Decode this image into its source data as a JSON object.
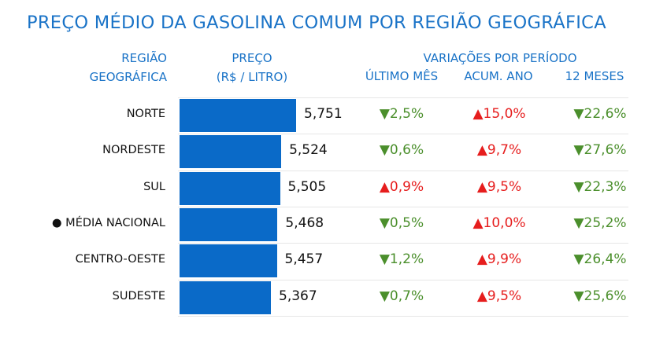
{
  "title": "PREÇO MÉDIO DA GASOLINA COMUM POR REGIÃO GEOGRÁFICA",
  "headers": {
    "region_line1": "REGIÃO",
    "region_line2": "GEOGRÁFICA",
    "price_line1": "PREÇO",
    "price_line2": "(R$ / LITRO)",
    "variations": "VARIAÇÕES POR PERÍODO",
    "col_month": "ÚLTIMO MÊS",
    "col_year": "ACUM. ANO",
    "col_12m": "12 MESES"
  },
  "colors": {
    "bar": "#0a6ac8",
    "up": "#e61d1d",
    "down": "#4b8f2c",
    "header": "#1a73c7"
  },
  "chart_data": {
    "type": "bar",
    "title": "PREÇO MÉDIO DA GASOLINA COMUM POR REGIÃO GEOGRÁFICA",
    "orientation": "horizontal",
    "categories": [
      "NORTE",
      "NORDESTE",
      "SUL",
      "● MÉDIA NACIONAL",
      "CENTRO-OESTE",
      "SUDESTE"
    ],
    "values": [
      5.751,
      5.524,
      5.505,
      5.468,
      5.457,
      5.367
    ],
    "value_labels": [
      "5,751",
      "5,524",
      "5,505",
      "5,468",
      "5,457",
      "5,367"
    ],
    "rows": [
      {
        "region": "NORTE",
        "price": "5,751",
        "month": "▼2,5%",
        "month_dir": "down",
        "year": "▲15,0%",
        "year_dir": "up",
        "m12": "▼22,6%",
        "m12_dir": "down"
      },
      {
        "region": "NORDESTE",
        "price": "5,524",
        "month": "▼0,6%",
        "month_dir": "down",
        "year": "▲9,7%",
        "year_dir": "up",
        "m12": "▼27,6%",
        "m12_dir": "down"
      },
      {
        "region": "SUL",
        "price": "5,505",
        "month": "▲0,9%",
        "month_dir": "up",
        "year": "▲9,5%",
        "year_dir": "up",
        "m12": "▼22,3%",
        "m12_dir": "down"
      },
      {
        "region": "● MÉDIA NACIONAL",
        "price": "5,468",
        "month": "▼0,5%",
        "month_dir": "down",
        "year": "▲10,0%",
        "year_dir": "up",
        "m12": "▼25,2%",
        "m12_dir": "down"
      },
      {
        "region": "CENTRO-OESTE",
        "price": "5,457",
        "month": "▼1,2%",
        "month_dir": "down",
        "year": "▲9,9%",
        "year_dir": "up",
        "m12": "▼26,4%",
        "m12_dir": "down"
      },
      {
        "region": "SUDESTE",
        "price": "5,367",
        "month": "▼0,7%",
        "month_dir": "down",
        "year": "▲9,5%",
        "year_dir": "up",
        "m12": "▼25,6%",
        "m12_dir": "down"
      }
    ]
  }
}
